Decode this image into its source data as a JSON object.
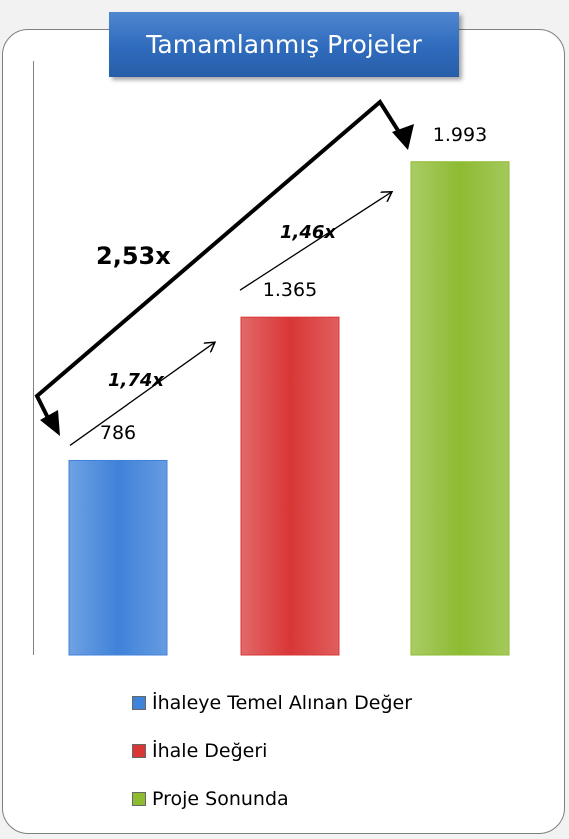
{
  "title": "Tamamlanmış Projeler",
  "chart_data": {
    "type": "bar",
    "categories": [
      "İhaleye Temel Alınan Değer",
      "İhale Değeri",
      "Proje Sonunda"
    ],
    "values": [
      786,
      1365,
      1993
    ],
    "value_labels": [
      "786",
      "1.365",
      "1.993"
    ],
    "ylim": [
      0,
      2400
    ],
    "colors": [
      "#3f82d9",
      "#d93636",
      "#8dbb32"
    ],
    "grid": false,
    "legend_position": "bottom",
    "annotations": [
      {
        "text": "1,74x",
        "from": 0,
        "to": 1
      },
      {
        "text": "1,46x",
        "from": 1,
        "to": 2
      },
      {
        "text": "2,53x",
        "from": 0,
        "to": 2
      }
    ]
  },
  "legend": [
    {
      "label": "İhaleye Temel Alınan Değer",
      "color": "#3f82d9"
    },
    {
      "label": "İhale Değeri",
      "color": "#d93636"
    },
    {
      "label": "Proje Sonunda",
      "color": "#8dbb32"
    }
  ]
}
